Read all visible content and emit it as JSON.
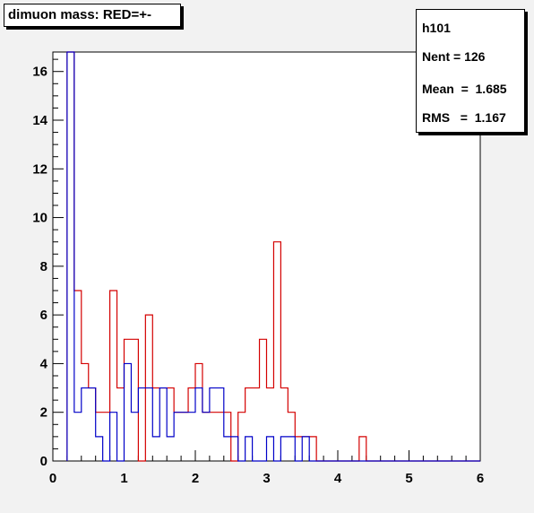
{
  "title": "dimuon mass: RED=+-",
  "stats": {
    "name": "h101",
    "entries": "Nent = 126",
    "mean": "Mean  =  1.685",
    "rms": "RMS   =  1.167"
  },
  "chart_data": {
    "type": "histogram",
    "title": "dimuon mass: RED=+-",
    "xlabel": "",
    "ylabel": "",
    "xlim": [
      0,
      6
    ],
    "ylim": [
      0,
      16.8
    ],
    "bin_width": 0.1,
    "x_ticks": [
      0,
      1,
      2,
      3,
      4,
      5,
      6
    ],
    "y_ticks": [
      0,
      2,
      4,
      6,
      8,
      10,
      12,
      14,
      16
    ],
    "grid": false,
    "series": [
      {
        "name": "+-",
        "color": "#d40000",
        "bin_edges_start": 0.2,
        "counts": [
          17,
          7,
          4,
          3,
          2,
          2,
          7,
          3,
          5,
          5,
          0,
          6,
          3,
          3,
          3,
          2,
          2,
          3,
          4,
          2,
          2,
          2,
          2,
          0,
          2,
          3,
          3,
          5,
          3,
          9,
          3,
          2,
          1,
          1,
          1,
          0,
          0,
          0,
          0,
          0,
          0,
          1,
          0,
          0,
          0,
          0,
          0,
          0,
          0,
          0,
          0,
          0,
          0,
          0,
          0,
          0,
          0,
          0
        ]
      },
      {
        "name": "++ / --",
        "color": "#0000c8",
        "bin_edges_start": 0.2,
        "counts": [
          17,
          2,
          3,
          3,
          1,
          0,
          2,
          0,
          4,
          2,
          3,
          3,
          1,
          3,
          1,
          2,
          2,
          2,
          3,
          2,
          3,
          3,
          1,
          1,
          0,
          1,
          0,
          0,
          1,
          0,
          1,
          1,
          0,
          1,
          0,
          0,
          0,
          0,
          0,
          0,
          0,
          0,
          0,
          0,
          0,
          0,
          0,
          0,
          0,
          0,
          0,
          0,
          0,
          0,
          0,
          0,
          0,
          0
        ]
      }
    ]
  }
}
